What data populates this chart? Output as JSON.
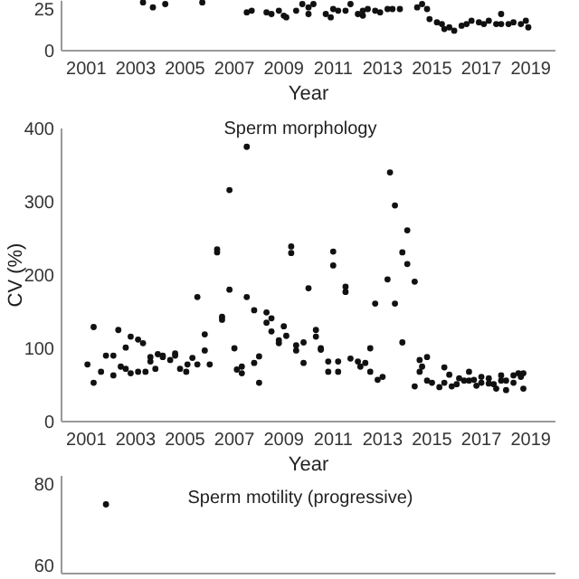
{
  "chart_data": [
    {
      "type": "scatter",
      "xlabel": "Year",
      "xlim": [
        2000,
        2020
      ],
      "ylim": [
        0,
        30
      ],
      "xticks": [
        2001,
        2003,
        2005,
        2007,
        2009,
        2011,
        2013,
        2015,
        2017,
        2019
      ],
      "yticks": [
        0,
        25
      ],
      "marker": "circle",
      "color": "#111111",
      "x": [
        2003.3,
        2003.7,
        2004.2,
        2005.7,
        2007.5,
        2007.7,
        2008.3,
        2008.5,
        2008.8,
        2009.0,
        2009.1,
        2009.5,
        2009.75,
        2010.0,
        2010.0,
        2010.2,
        2010.7,
        2010.9,
        2011.0,
        2011.2,
        2011.5,
        2011.7,
        2012.0,
        2012.2,
        2012.2,
        2012.4,
        2012.7,
        2012.9,
        2013.2,
        2013.4,
        2013.7,
        2014.4,
        2014.6,
        2014.8,
        2014.9,
        2015.2,
        2015.4,
        2015.5,
        2015.7,
        2015.9,
        2016.2,
        2016.4,
        2016.6,
        2016.9,
        2017.1,
        2017.3,
        2017.6,
        2017.8,
        2017.8,
        2018.1,
        2018.3,
        2018.6,
        2018.8,
        2018.9
      ],
      "values": [
        29,
        26,
        28,
        29,
        23,
        24,
        23,
        22,
        24,
        21,
        20,
        24,
        28,
        26,
        22,
        28,
        22,
        20,
        25,
        24,
        24,
        28,
        22,
        24,
        21,
        25,
        24,
        23,
        25,
        25,
        25,
        26,
        28,
        25,
        19,
        17,
        16,
        13,
        14,
        12,
        15,
        16,
        18,
        17,
        16,
        18,
        16,
        22,
        16,
        16,
        17,
        16,
        18,
        14
      ]
    },
    {
      "type": "scatter",
      "title": "Sperm morphology",
      "xlabel": "Year",
      "ylabel": "CV (%)",
      "xlim": [
        2000,
        2020
      ],
      "ylim": [
        0,
        400
      ],
      "xticks": [
        2001,
        2003,
        2005,
        2007,
        2009,
        2011,
        2013,
        2015,
        2017,
        2019
      ],
      "yticks": [
        0,
        100,
        200,
        300,
        400
      ],
      "marker": "circle",
      "color": "#111111",
      "x": [
        2001.05,
        2001.3,
        2001.3,
        2001.6,
        2001.8,
        2002.1,
        2002.1,
        2002.3,
        2002.4,
        2002.6,
        2002.6,
        2002.8,
        2002.8,
        2003.1,
        2003.1,
        2003.3,
        2003.4,
        2003.6,
        2003.6,
        2003.8,
        2003.9,
        2004.1,
        2004.1,
        2004.4,
        2004.6,
        2004.6,
        2004.8,
        2005.05,
        2005.1,
        2005.3,
        2005.5,
        2005.5,
        2005.8,
        2005.8,
        2006.0,
        2006.3,
        2006.3,
        2006.5,
        2006.5,
        2006.8,
        2006.8,
        2007.0,
        2007.1,
        2007.3,
        2007.3,
        2007.5,
        2007.5,
        2007.8,
        2007.8,
        2008.0,
        2008.0,
        2008.3,
        2008.3,
        2008.5,
        2008.5,
        2008.8,
        2008.8,
        2009.0,
        2009.1,
        2009.3,
        2009.3,
        2009.5,
        2009.5,
        2009.8,
        2009.8,
        2010.0,
        2010.3,
        2010.3,
        2010.5,
        2010.5,
        2010.8,
        2010.8,
        2011.0,
        2011.0,
        2011.2,
        2011.2,
        2011.5,
        2011.5,
        2011.7,
        2012.0,
        2012.1,
        2012.3,
        2012.5,
        2012.5,
        2012.7,
        2012.8,
        2013.0,
        2013.2,
        2013.3,
        2013.5,
        2013.5,
        2013.8,
        2013.8,
        2014.0,
        2014.0,
        2014.3,
        2014.3,
        2014.5,
        2014.5,
        2014.6,
        2014.8,
        2014.8,
        2015.0,
        2015.3,
        2015.5,
        2015.5,
        2015.7,
        2015.8,
        2016.0,
        2016.1,
        2016.3,
        2016.5,
        2016.5,
        2016.7,
        2016.8,
        2017.0,
        2017.0,
        2017.3,
        2017.3,
        2017.5,
        2017.6,
        2017.8,
        2017.8,
        2018.0,
        2018.0,
        2018.3,
        2018.3,
        2018.5,
        2018.6,
        2018.7,
        2018.7
      ],
      "values": [
        78,
        129,
        53,
        68,
        90,
        90,
        63,
        125,
        75,
        101,
        72,
        116,
        66,
        112,
        68,
        107,
        68,
        82,
        88,
        72,
        92,
        90,
        88,
        84,
        90,
        93,
        72,
        68,
        78,
        87,
        170,
        78,
        119,
        97,
        78,
        235,
        231,
        143,
        139,
        316,
        180,
        100,
        71,
        66,
        75,
        375,
        170,
        152,
        80,
        89,
        53,
        149,
        135,
        141,
        123,
        111,
        107,
        130,
        117,
        239,
        230,
        104,
        97,
        108,
        80,
        182,
        116,
        125,
        100,
        98,
        82,
        68,
        232,
        213,
        82,
        68,
        184,
        177,
        86,
        82,
        75,
        80,
        100,
        68,
        161,
        57,
        61,
        194,
        340,
        295,
        161,
        108,
        231,
        261,
        215,
        191,
        48,
        84,
        68,
        75,
        88,
        56,
        53,
        47,
        74,
        53,
        64,
        48,
        51,
        59,
        56,
        68,
        56,
        57,
        49,
        61,
        53,
        59,
        52,
        51,
        45,
        63,
        56,
        56,
        43,
        63,
        53,
        66,
        61,
        66,
        45
      ]
    },
    {
      "type": "scatter",
      "title": "Sperm motility (progressive)",
      "xlim": [
        2000,
        2020
      ],
      "ylim": [
        58,
        82
      ],
      "yticks": [
        60,
        80
      ],
      "tick_labels": "y",
      "marker": "circle",
      "color": "#111111",
      "x": [
        2001.8
      ],
      "values": [
        75
      ]
    }
  ]
}
